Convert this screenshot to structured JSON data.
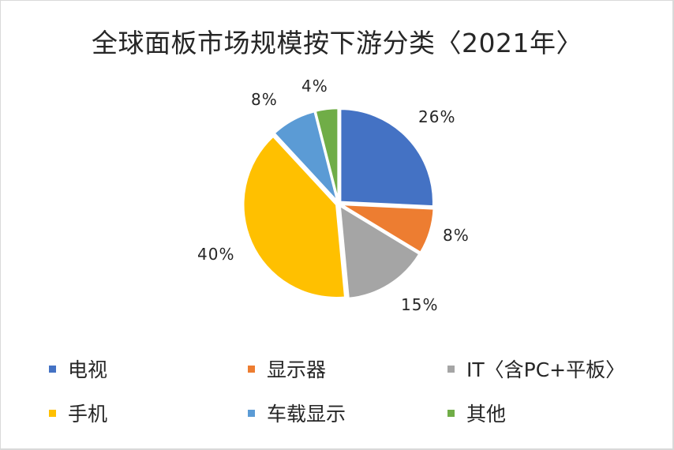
{
  "chart_data": {
    "type": "pie",
    "title": "全球面板市场规模按下游分类〈2021年〉",
    "categories": [
      "电视",
      "显示器",
      "IT〈含PC+平板〉",
      "手机",
      "车载显示",
      "其他"
    ],
    "values": [
      26,
      8,
      15,
      40,
      8,
      4
    ],
    "labels": [
      "26%",
      "8%",
      "15%",
      "40%",
      "8%",
      "4%"
    ],
    "colors": [
      "#4472C4",
      "#ED7D31",
      "#A5A5A5",
      "#FFC000",
      "#5B9BD5",
      "#70AD47"
    ],
    "unit": "%",
    "start_angle": "12 o'clock, clockwise",
    "exploded": true,
    "legend_position": "bottom",
    "xlabel": "",
    "ylabel": ""
  },
  "title": "全球面板市场规模按下游分类〈2021年〉",
  "data_labels": {
    "tv": "26%",
    "monitor": "8%",
    "it": "15%",
    "phone": "40%",
    "auto": "8%",
    "other": "4%"
  },
  "legend": {
    "items": [
      {
        "label": "电视",
        "color": "#4472C4"
      },
      {
        "label": "显示器",
        "color": "#ED7D31"
      },
      {
        "label": "IT〈含PC+平板〉",
        "color": "#A5A5A5"
      },
      {
        "label": "手机",
        "color": "#FFC000"
      },
      {
        "label": "车载显示",
        "color": "#5B9BD5"
      },
      {
        "label": "其他",
        "color": "#70AD47"
      }
    ]
  }
}
